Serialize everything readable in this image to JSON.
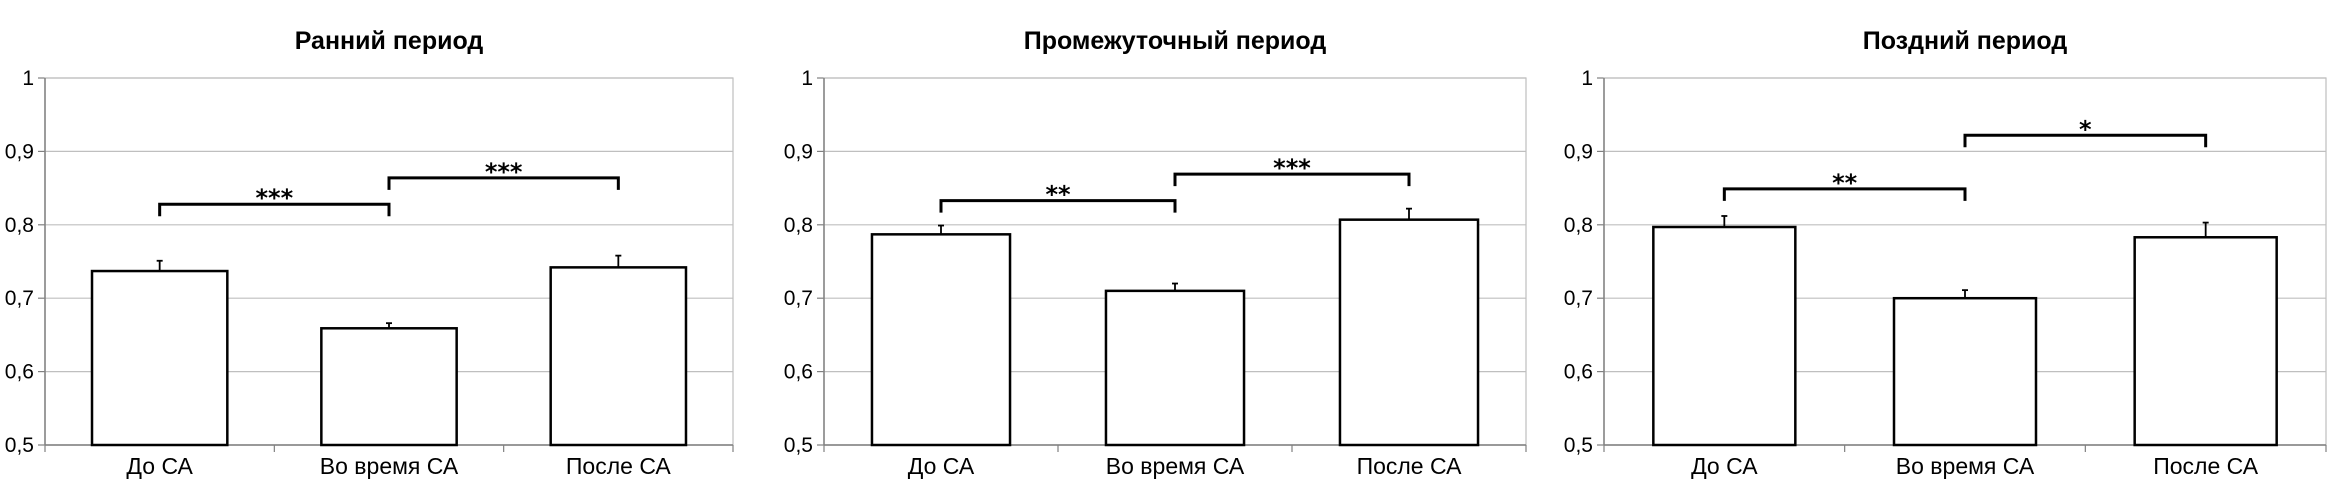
{
  "chart_data": [
    {
      "type": "bar",
      "title": "Ранний период",
      "categories": [
        "До СА",
        "Во время СА",
        "После СА"
      ],
      "values": [
        0.737,
        0.659,
        0.742
      ],
      "errors": [
        0.014,
        0.007,
        0.016
      ],
      "ylim": [
        0.5,
        1
      ],
      "yticks": [
        "0,5",
        "0,6",
        "0,7",
        "0,8",
        "0,9",
        "1"
      ],
      "significance": [
        {
          "from": 0,
          "to": 1,
          "level": 0.828,
          "label": "***"
        },
        {
          "from": 1,
          "to": 2,
          "level": 0.864,
          "label": "***"
        }
      ]
    },
    {
      "type": "bar",
      "title": "Промежуточный период",
      "categories": [
        "До СА",
        "Во время СА",
        "После СА"
      ],
      "values": [
        0.787,
        0.71,
        0.807
      ],
      "errors": [
        0.012,
        0.01,
        0.015
      ],
      "ylim": [
        0.5,
        1
      ],
      "yticks": [
        "0,5",
        "0,6",
        "0,7",
        "0,8",
        "0,9",
        "1"
      ],
      "significance": [
        {
          "from": 0,
          "to": 1,
          "level": 0.833,
          "label": "**"
        },
        {
          "from": 1,
          "to": 2,
          "level": 0.869,
          "label": "***"
        }
      ]
    },
    {
      "type": "bar",
      "title": "Поздний период",
      "categories": [
        "До СА",
        "Во время СА",
        "После СА"
      ],
      "values": [
        0.797,
        0.7,
        0.783
      ],
      "errors": [
        0.015,
        0.011,
        0.02
      ],
      "ylim": [
        0.5,
        1
      ],
      "yticks": [
        "0,5",
        "0,6",
        "0,7",
        "0,8",
        "0,9",
        "1"
      ],
      "significance": [
        {
          "from": 0,
          "to": 1,
          "level": 0.849,
          "label": "**"
        },
        {
          "from": 1,
          "to": 2,
          "level": 0.922,
          "label": "*"
        }
      ]
    }
  ],
  "colors": {
    "bar_fill": "#ffffff",
    "bar_stroke": "#000000",
    "grid": "#bfbfbf",
    "axis": "#808080"
  }
}
